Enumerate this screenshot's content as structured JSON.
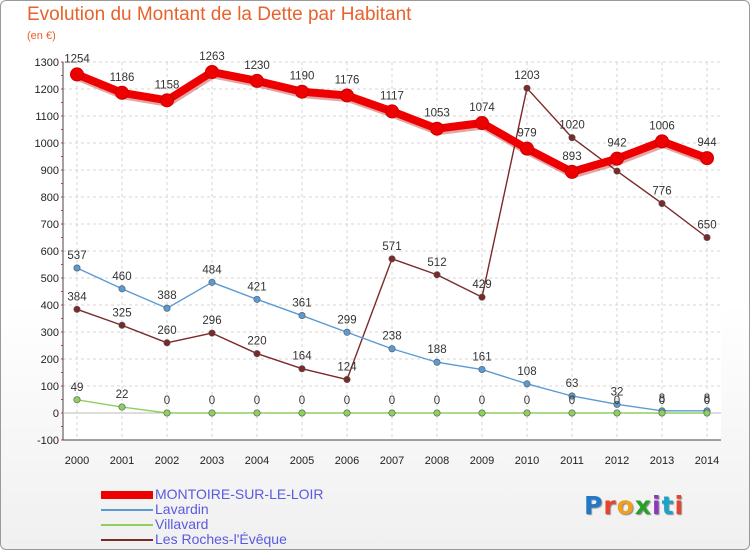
{
  "title": "Evolution du Montant de la Dette par Habitant",
  "subtitle": "(en €)",
  "logo": {
    "text": "Proxiti",
    "colors": [
      "#1f78c8",
      "#e8432c",
      "#f0a020",
      "#2aa02a",
      "#8a3ab9",
      "#1aa3c9",
      "#e8432c"
    ]
  },
  "chart_data": {
    "type": "line",
    "title": "Evolution du Montant de la Dette par Habitant",
    "ylabel": "(en €)",
    "xlabel": "",
    "ylim": [
      -100,
      1300
    ],
    "yticks": [
      -100,
      0,
      100,
      200,
      300,
      400,
      500,
      600,
      700,
      800,
      900,
      1000,
      1100,
      1200,
      1300
    ],
    "grid": true,
    "legend_position": "bottom-left",
    "x": [
      2000,
      2001,
      2002,
      2003,
      2004,
      2005,
      2006,
      2007,
      2008,
      2009,
      2010,
      2011,
      2012,
      2013,
      2014
    ],
    "series": [
      {
        "name": "MONTOIRE-SUR-LE-LOIR",
        "color": "#ee0000",
        "values": [
          1254,
          1186,
          1158,
          1263,
          1230,
          1190,
          1176,
          1117,
          1053,
          1074,
          979,
          893,
          942,
          1006,
          944
        ],
        "labels": [
          "1254",
          "1186",
          "1158",
          "1263",
          "1230",
          "1190",
          "1176",
          "1117",
          "1053",
          "1074",
          "979",
          "893",
          "942",
          "1006",
          "944"
        ]
      },
      {
        "name": "Lavardin",
        "color": "#5a9bd5",
        "values": [
          537,
          460,
          388,
          484,
          421,
          361,
          299,
          238,
          188,
          161,
          108,
          63,
          32,
          8,
          8
        ],
        "labels": [
          "537",
          "460",
          "388",
          "484",
          "421",
          "361",
          "299",
          "238",
          "188",
          "161",
          "108",
          "63",
          "32",
          "8",
          "8"
        ]
      },
      {
        "name": "Villavard",
        "color": "#8ed060",
        "values": [
          49,
          22,
          0,
          0,
          0,
          0,
          0,
          0,
          0,
          0,
          0,
          0,
          0,
          0,
          0
        ],
        "labels": [
          "49",
          "22",
          "0",
          "0",
          "0",
          "0",
          "0",
          "0",
          "0",
          "0",
          "0",
          "0",
          "0",
          "0",
          "0"
        ]
      },
      {
        "name": "Les Roches-l'Évêque",
        "color": "#7b2a2a",
        "values": [
          384,
          325,
          260,
          296,
          220,
          164,
          124,
          571,
          512,
          429,
          1203,
          1020,
          896,
          776,
          650
        ],
        "labels": [
          "384",
          "325",
          "260",
          "296",
          "220",
          "164",
          "124",
          "571",
          "512",
          "429",
          "1203",
          "1020",
          "",
          "776",
          "650"
        ]
      }
    ]
  }
}
